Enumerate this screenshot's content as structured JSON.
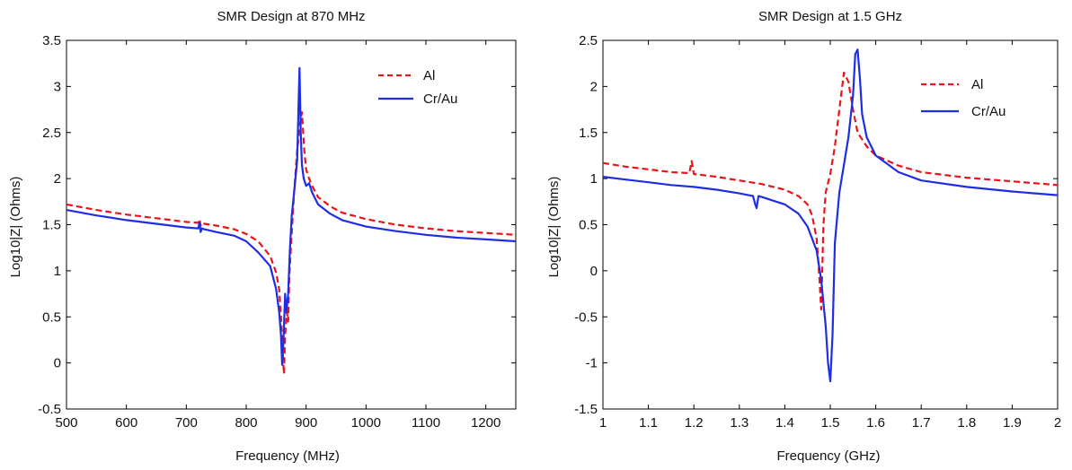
{
  "chart_data": [
    {
      "type": "line",
      "title": "SMR Design at 870 MHz",
      "xlabel": "Frequency (MHz)",
      "ylabel": "Log10|Z| (Ohms)",
      "xlim": [
        500,
        1250
      ],
      "ylim": [
        -0.5,
        3.5
      ],
      "xticks": [
        500,
        600,
        700,
        800,
        900,
        1000,
        1100,
        1200
      ],
      "yticks": [
        -0.5,
        0,
        0.5,
        1,
        1.5,
        2,
        2.5,
        3,
        3.5
      ],
      "ytick_labels": [
        "-0.5",
        "0",
        "0.5",
        "1",
        "1.5",
        "2",
        "2.5",
        "3",
        "3.5"
      ],
      "grid": false,
      "legend_position": "top-right",
      "series": [
        {
          "name": "Al",
          "color": "#e8141b",
          "style": "dashed",
          "x": [
            500,
            550,
            600,
            650,
            700,
            720,
            722,
            724,
            726,
            730,
            750,
            780,
            800,
            820,
            840,
            850,
            855,
            858,
            861,
            863,
            865,
            868,
            870,
            872,
            875,
            880,
            885,
            890,
            893,
            897,
            900,
            905,
            910,
            920,
            940,
            960,
            1000,
            1050,
            1100,
            1150,
            1200,
            1250
          ],
          "y": [
            1.72,
            1.66,
            1.61,
            1.57,
            1.53,
            1.52,
            1.56,
            1.49,
            1.52,
            1.51,
            1.49,
            1.45,
            1.4,
            1.32,
            1.16,
            0.98,
            0.8,
            0.5,
            0.1,
            -0.12,
            0.3,
            0.55,
            0.45,
            0.95,
            1.3,
            1.85,
            2.3,
            2.6,
            2.72,
            2.3,
            2.1,
            2.0,
            1.92,
            1.8,
            1.7,
            1.63,
            1.56,
            1.5,
            1.46,
            1.43,
            1.41,
            1.39
          ]
        },
        {
          "name": "Cr/Au",
          "color": "#1f2de3",
          "style": "solid",
          "x": [
            500,
            550,
            600,
            650,
            700,
            720,
            722,
            724,
            726,
            730,
            750,
            780,
            800,
            820,
            840,
            850,
            855,
            858,
            860,
            862,
            865,
            867,
            870,
            873,
            876,
            880,
            885,
            889,
            891,
            893,
            896,
            900,
            905,
            910,
            920,
            940,
            960,
            1000,
            1050,
            1100,
            1150,
            1200,
            1250
          ],
          "y": [
            1.66,
            1.6,
            1.55,
            1.51,
            1.47,
            1.46,
            1.52,
            1.42,
            1.46,
            1.45,
            1.42,
            1.38,
            1.32,
            1.2,
            1.05,
            0.8,
            0.55,
            0.3,
            -0.02,
            0.2,
            0.75,
            0.55,
            0.75,
            1.25,
            1.6,
            1.85,
            2.2,
            3.2,
            2.5,
            2.15,
            2.0,
            1.92,
            1.95,
            1.85,
            1.72,
            1.62,
            1.55,
            1.48,
            1.43,
            1.39,
            1.36,
            1.34,
            1.32
          ]
        }
      ]
    },
    {
      "type": "line",
      "title": "SMR Design at 1.5 GHz",
      "xlabel": "Frequency (GHz)",
      "ylabel": "Log10|Z| (Ohms)",
      "xlim": [
        1,
        2
      ],
      "ylim": [
        -1.5,
        2.5
      ],
      "xticks": [
        1,
        1.1,
        1.2,
        1.3,
        1.4,
        1.5,
        1.6,
        1.7,
        1.8,
        1.9,
        2
      ],
      "xtick_labels": [
        "1",
        "1.1",
        "1.2",
        "1.3",
        "1.4",
        "1.5",
        "1.6",
        "1.7",
        "1.8",
        "1.9",
        "2"
      ],
      "yticks": [
        -1.5,
        -1,
        -0.5,
        0,
        0.5,
        1,
        1.5,
        2,
        2.5
      ],
      "ytick_labels": [
        "-1.5",
        "-1",
        "-0.5",
        "0",
        "0.5",
        "1",
        "1.5",
        "2",
        "2.5"
      ],
      "grid": false,
      "legend_position": "top-right",
      "series": [
        {
          "name": "Al",
          "color": "#e8141b",
          "style": "dashed",
          "x": [
            1.0,
            1.05,
            1.1,
            1.15,
            1.19,
            1.195,
            1.2,
            1.25,
            1.3,
            1.35,
            1.4,
            1.43,
            1.45,
            1.46,
            1.47,
            1.475,
            1.48,
            1.485,
            1.49,
            1.5,
            1.51,
            1.52,
            1.53,
            1.54,
            1.55,
            1.56,
            1.58,
            1.6,
            1.65,
            1.7,
            1.8,
            1.9,
            2.0
          ],
          "y": [
            1.17,
            1.13,
            1.1,
            1.07,
            1.06,
            1.19,
            1.05,
            1.02,
            0.98,
            0.94,
            0.88,
            0.81,
            0.72,
            0.6,
            0.35,
            0.0,
            -0.42,
            0.5,
            0.85,
            1.05,
            1.35,
            1.75,
            2.15,
            2.05,
            1.75,
            1.5,
            1.35,
            1.25,
            1.14,
            1.07,
            1.01,
            0.97,
            0.93
          ]
        },
        {
          "name": "Cr/Au",
          "color": "#1f2de3",
          "style": "solid",
          "x": [
            1.0,
            1.05,
            1.1,
            1.15,
            1.2,
            1.25,
            1.3,
            1.33,
            1.335,
            1.338,
            1.342,
            1.35,
            1.4,
            1.43,
            1.45,
            1.47,
            1.48,
            1.49,
            1.495,
            1.5,
            1.505,
            1.51,
            1.52,
            1.53,
            1.54,
            1.55,
            1.555,
            1.56,
            1.565,
            1.57,
            1.58,
            1.6,
            1.65,
            1.7,
            1.8,
            1.9,
            2.0
          ],
          "y": [
            1.02,
            0.99,
            0.96,
            0.93,
            0.91,
            0.88,
            0.84,
            0.81,
            0.72,
            0.68,
            0.81,
            0.8,
            0.72,
            0.62,
            0.48,
            0.22,
            -0.1,
            -0.6,
            -1.0,
            -1.2,
            -0.7,
            0.3,
            0.85,
            1.15,
            1.45,
            1.9,
            2.35,
            2.4,
            2.1,
            1.7,
            1.45,
            1.25,
            1.07,
            0.98,
            0.91,
            0.86,
            0.82
          ]
        }
      ]
    }
  ]
}
